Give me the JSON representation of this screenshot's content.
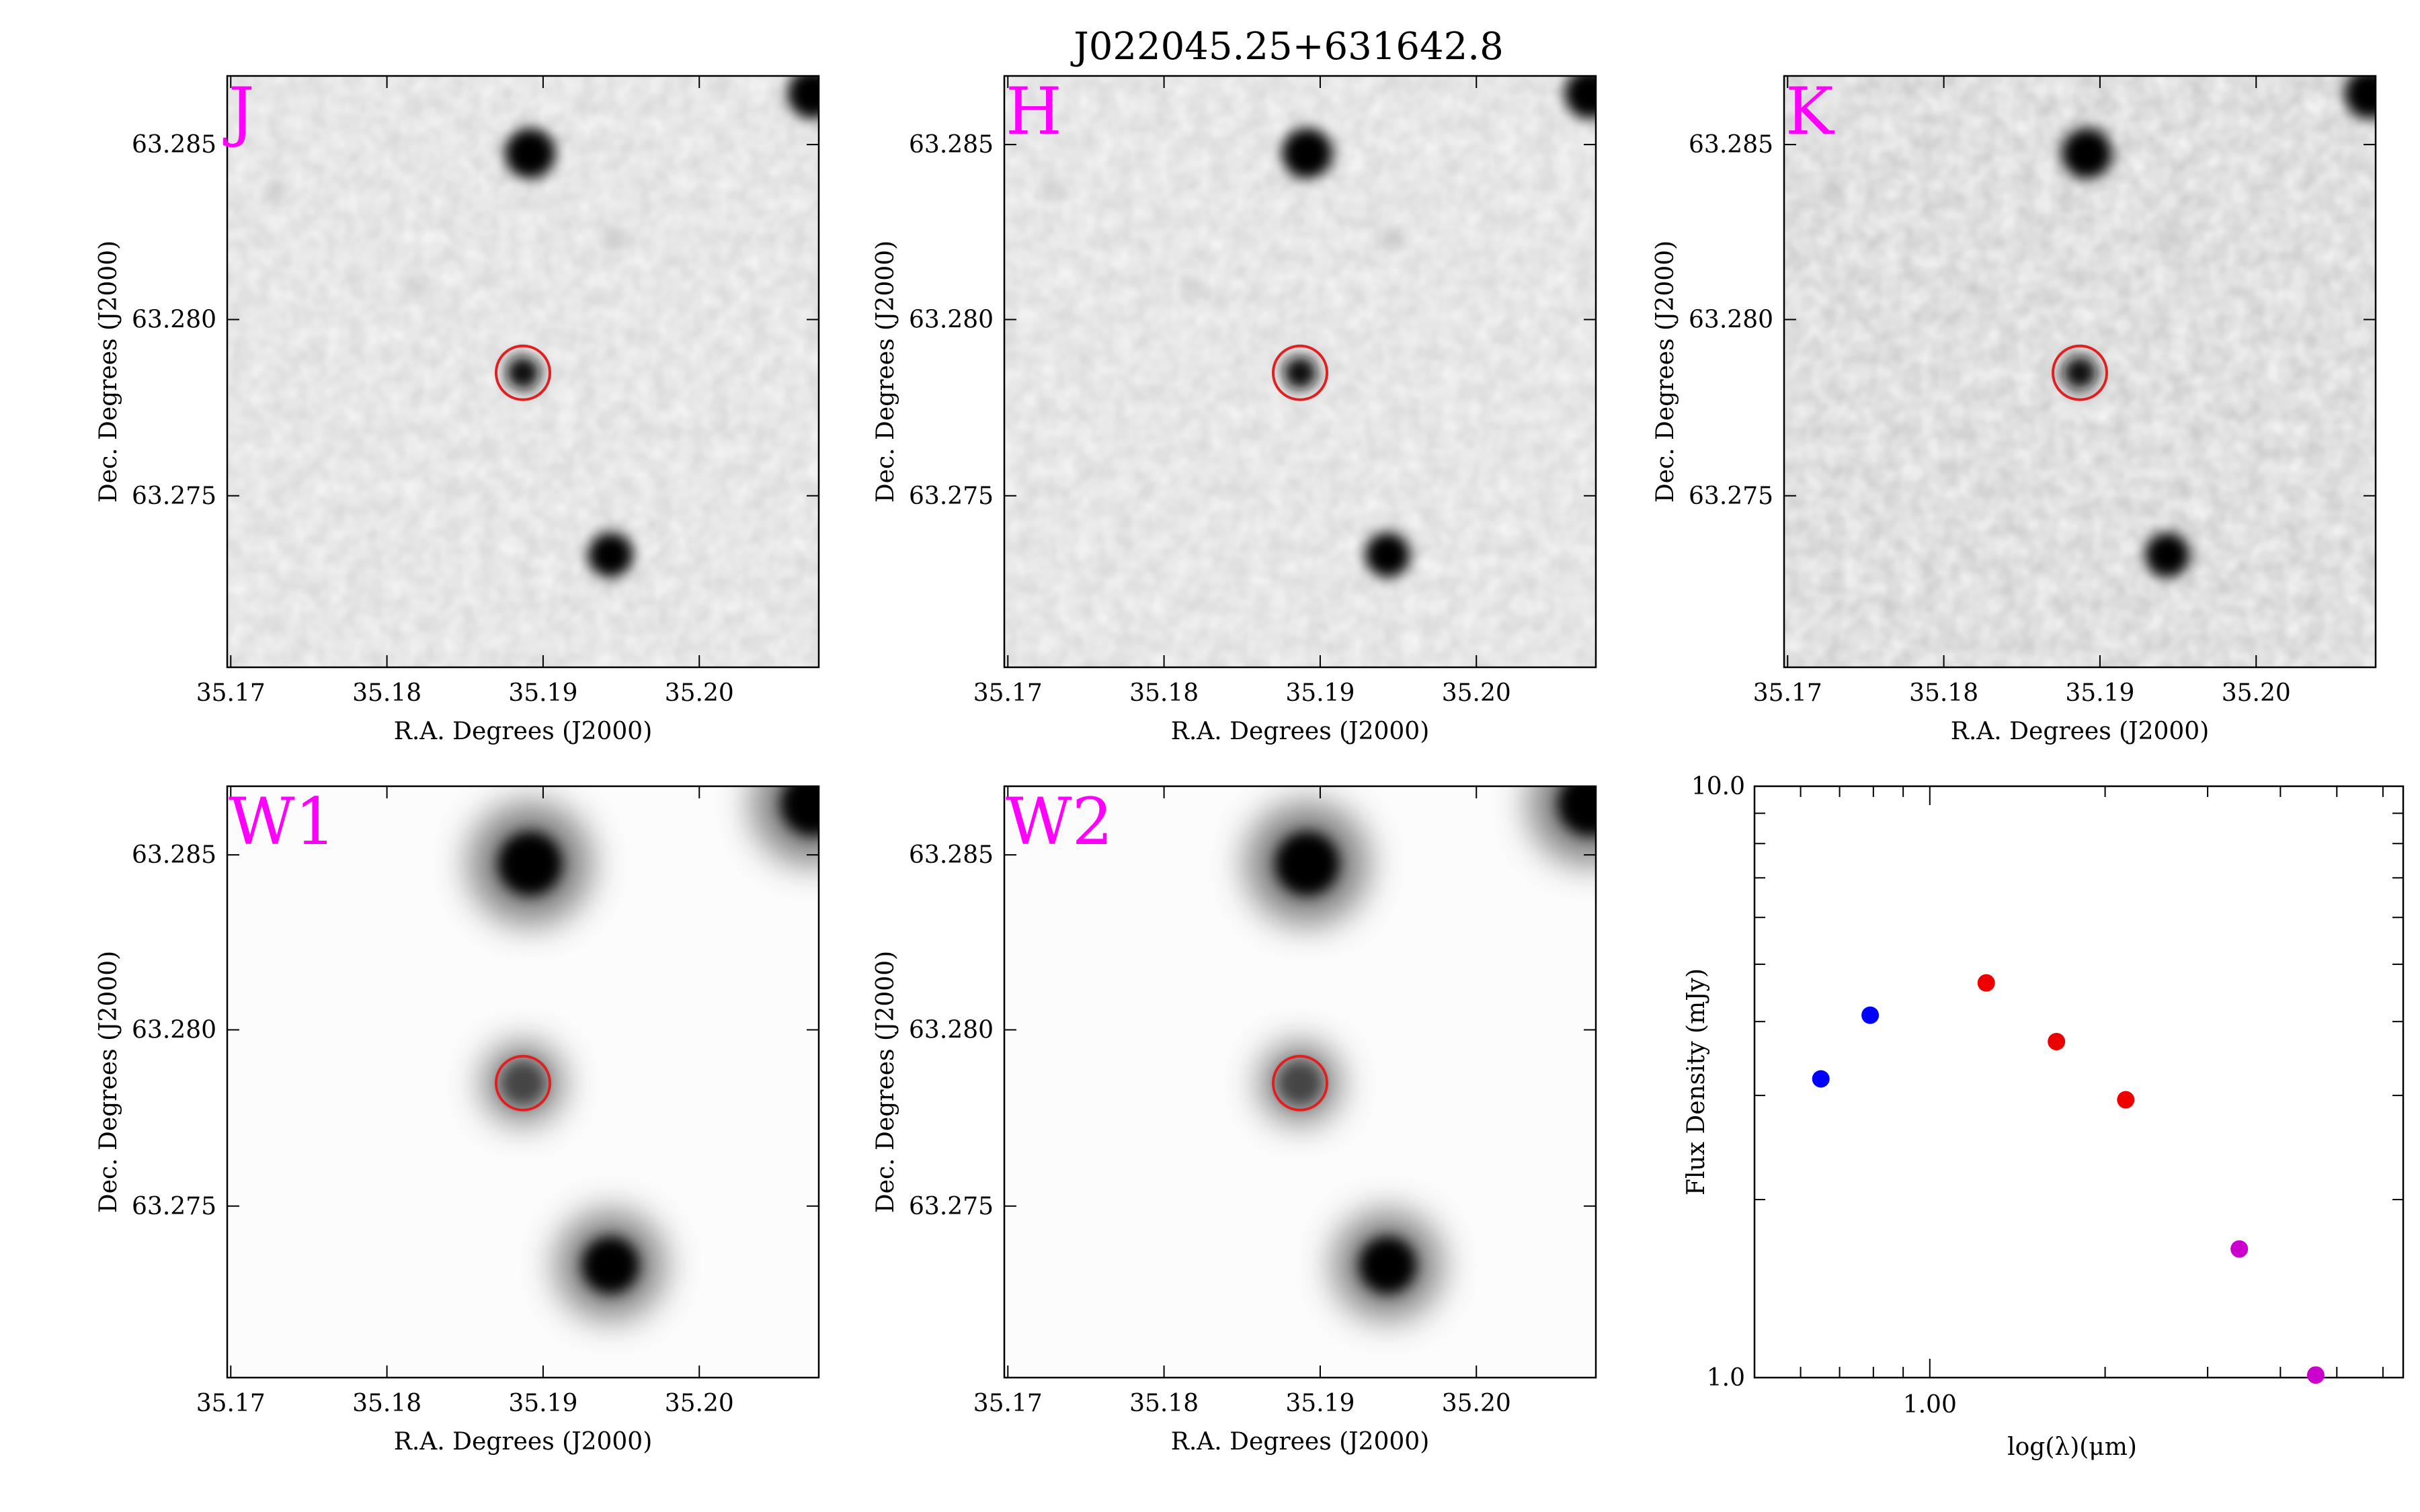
{
  "title": "J022045.25+631642.8",
  "colors": {
    "band_label": "#ff00ff",
    "aperture": "#e02020",
    "twomass": "#0000ff",
    "spitzer": "#ee0000",
    "wise": "#cc00cc",
    "errorbar": "#1a8a1a"
  },
  "cutouts": [
    {
      "band": "J",
      "xlabel": "R.A. Degrees (J2000)",
      "ylabel": "Dec. Degrees (J2000)",
      "xticks": [
        "35.17",
        "35.18",
        "35.19",
        "35.20"
      ],
      "yticks": [
        "63.285",
        "63.280",
        "63.275"
      ]
    },
    {
      "band": "H",
      "xlabel": "R.A. Degrees (J2000)",
      "ylabel": "Dec. Degrees (J2000)",
      "xticks": [
        "35.17",
        "35.18",
        "35.19",
        "35.20"
      ],
      "yticks": [
        "63.285",
        "63.280",
        "63.275"
      ]
    },
    {
      "band": "K",
      "xlabel": "R.A. Degrees (J2000)",
      "ylabel": "Dec. Degrees (J2000)",
      "xticks": [
        "35.17",
        "35.18",
        "35.19",
        "35.20"
      ],
      "yticks": [
        "63.285",
        "63.280",
        "63.275"
      ]
    },
    {
      "band": "W1",
      "xlabel": "R.A. Degrees (J2000)",
      "ylabel": "Dec. Degrees (J2000)",
      "xticks": [
        "35.17",
        "35.18",
        "35.19",
        "35.20"
      ],
      "yticks": [
        "63.285",
        "63.280",
        "63.275"
      ]
    },
    {
      "band": "W2",
      "xlabel": "R.A. Degrees (J2000)",
      "ylabel": "Dec. Degrees (J2000)",
      "xticks": [
        "35.17",
        "35.18",
        "35.19",
        "35.20"
      ],
      "yticks": [
        "63.285",
        "63.280",
        "63.275"
      ]
    }
  ],
  "chart_data": {
    "type": "scatter",
    "xlabel": "log(λ)(μm)",
    "ylabel": "Flux Density (mJy)",
    "xscale": "log",
    "yscale": "log",
    "xlim": [
      0.5,
      6.5
    ],
    "ylim": [
      1.0,
      10.0
    ],
    "xtick_labels": [
      "1.00"
    ],
    "ytick_labels": [
      "10.0",
      "1.0"
    ],
    "points": [
      {
        "x": 0.65,
        "y": 3.2,
        "color": "#0000ff"
      },
      {
        "x": 0.79,
        "y": 4.1,
        "color": "#0000ff"
      },
      {
        "x": 1.25,
        "y": 4.65,
        "color": "#ee0000"
      },
      {
        "x": 1.65,
        "y": 3.7,
        "color": "#ee0000"
      },
      {
        "x": 2.17,
        "y": 2.95,
        "color": "#ee0000"
      },
      {
        "x": 3.4,
        "y": 1.65,
        "color": "#cc00cc"
      },
      {
        "x": 4.6,
        "y": 1.01,
        "color": "#cc00cc"
      }
    ]
  }
}
